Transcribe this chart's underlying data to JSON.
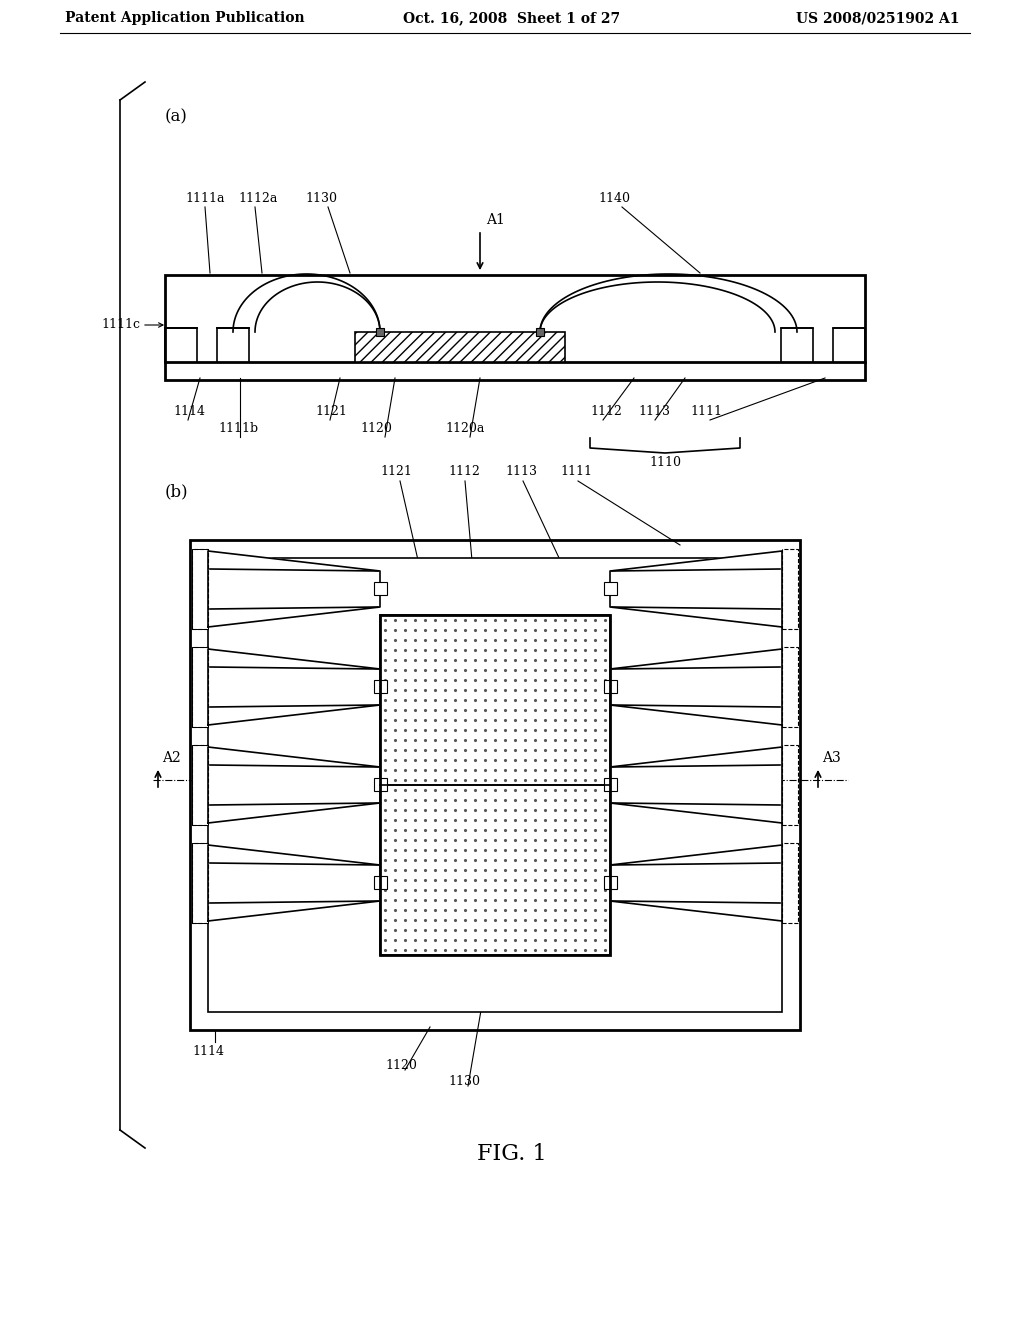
{
  "bg_color": "#ffffff",
  "header_left": "Patent Application Publication",
  "header_center": "Oct. 16, 2008  Sheet 1 of 27",
  "header_right": "US 2008/0251902 A1",
  "fig_label": "FIG. 1",
  "line_color": "#000000",
  "font_size_header": 10,
  "font_size_label": 9,
  "font_size_fig": 16,
  "font_size_sub": 12
}
